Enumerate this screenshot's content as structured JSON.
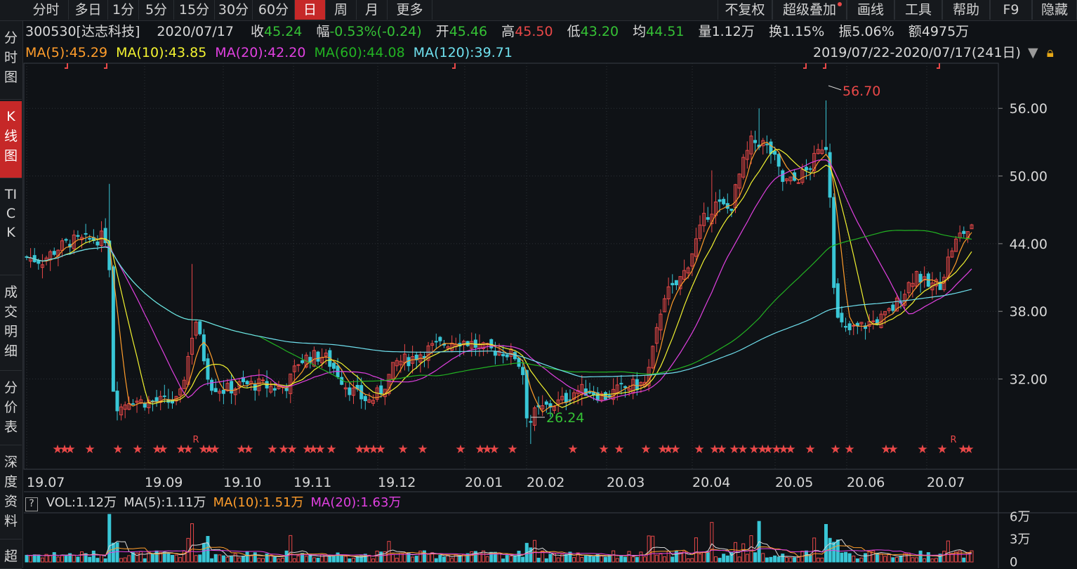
{
  "toolbar": {
    "left_tabs": [
      "分时",
      "多日",
      "1分",
      "5分",
      "15分",
      "30分",
      "60分",
      "日",
      "周",
      "月",
      "更多"
    ],
    "active_tab": "日",
    "right_tabs": [
      "不复权",
      "超级叠加",
      "画线",
      "工具",
      "帮助",
      "F9",
      "隐藏"
    ]
  },
  "sidenav": [
    {
      "label": "分时图"
    },
    {
      "label": "K线图",
      "active": true
    },
    {
      "label": "TICK"
    },
    {
      "label": "成交明细"
    },
    {
      "label": "分价表"
    },
    {
      "label": "深度资料"
    },
    {
      "label": "超"
    }
  ],
  "quote": {
    "code_name": "300530[达志科技]",
    "date": "2020/07/17",
    "close_label": "收",
    "close": "45.24",
    "change_label": "幅",
    "change": "-0.53%(-0.24)",
    "open_label": "开",
    "open": "45.46",
    "high_label": "高",
    "high": "45.50",
    "low_label": "低",
    "low": "43.20",
    "avg_label": "均",
    "avg": "44.51",
    "volume_label": "量",
    "volume": "1.12万",
    "turnover_label": "换",
    "turnover": "1.15%",
    "amplitude_label": "振",
    "amplitude": "5.06%",
    "amount_label": "额",
    "amount": "4975万"
  },
  "ma_legend": [
    {
      "label": "MA(5):45.29",
      "color": "#ff9d2b"
    },
    {
      "label": "MA(10):43.85",
      "color": "#f2f230"
    },
    {
      "label": "MA(20):42.20",
      "color": "#e040e0"
    },
    {
      "label": "MA(60):44.08",
      "color": "#22b322"
    },
    {
      "label": "MA(120):39.71",
      "color": "#6fe0ee"
    }
  ],
  "date_range": "2019/07/22-2020/07/17(241日)",
  "vol_legend": [
    {
      "label": "VOL:1.12万",
      "color": "#d8d8d8"
    },
    {
      "label": "MA(5):1.11万",
      "color": "#d8d8d8"
    },
    {
      "label": "MA(10):1.51万",
      "color": "#ff9d2b"
    },
    {
      "label": "MA(20):1.63万",
      "color": "#e040e0"
    }
  ],
  "chart_data": {
    "type": "candlestick",
    "y_ticks": [
      "56.00",
      "50.00",
      "44.00",
      "38.00",
      "32.00"
    ],
    "y_range": [
      24,
      60
    ],
    "x_ticks": [
      "19.07",
      "19.09",
      "19.10",
      "19.11",
      "19.12",
      "20.01",
      "20.02",
      "20.03",
      "20.04",
      "20.05",
      "20.06",
      "20.07"
    ],
    "annotations": {
      "max": "56.70",
      "min": "26.24",
      "star_r": "R"
    },
    "volume_ticks": [
      "6万",
      "3万",
      "0"
    ],
    "volume_range": [
      0,
      6.5
    ],
    "colors": {
      "up": "#e94848",
      "down": "#39c6d6",
      "grid": "#2c3137"
    }
  }
}
